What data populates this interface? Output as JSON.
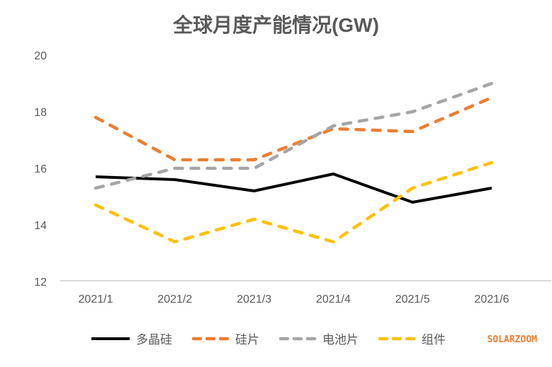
{
  "title": "全球月度产能情况(GW)",
  "watermark": "SOLARZOOM",
  "chart_data": {
    "type": "line",
    "title": "全球月度产能情况(GW)",
    "categories": [
      "2021/1",
      "2021/2",
      "2021/3",
      "2021/4",
      "2021/5",
      "2021/6"
    ],
    "series": [
      {
        "name": "多晶硅",
        "color": "#000000",
        "style": "solid",
        "values": [
          15.7,
          15.6,
          15.2,
          15.8,
          14.8,
          15.3
        ]
      },
      {
        "name": "硅片",
        "color": "#ED7D31",
        "style": "dashed",
        "values": [
          17.8,
          16.3,
          16.3,
          17.4,
          17.3,
          18.5
        ]
      },
      {
        "name": "电池片",
        "color": "#A5A5A5",
        "style": "dashed",
        "values": [
          15.3,
          16.0,
          16.0,
          17.5,
          18.0,
          19.0
        ]
      },
      {
        "name": "组件",
        "color": "#FFC000",
        "style": "dashed",
        "values": [
          14.7,
          13.4,
          14.2,
          13.4,
          15.3,
          16.2
        ]
      }
    ],
    "xlabel": "",
    "ylabel": "",
    "ylim": [
      12,
      20
    ],
    "yticks": [
      12,
      14,
      16,
      18,
      20
    ],
    "grid": false,
    "legend_position": "bottom",
    "axis_color": "#D9D9D9",
    "text_color": "#595959"
  }
}
